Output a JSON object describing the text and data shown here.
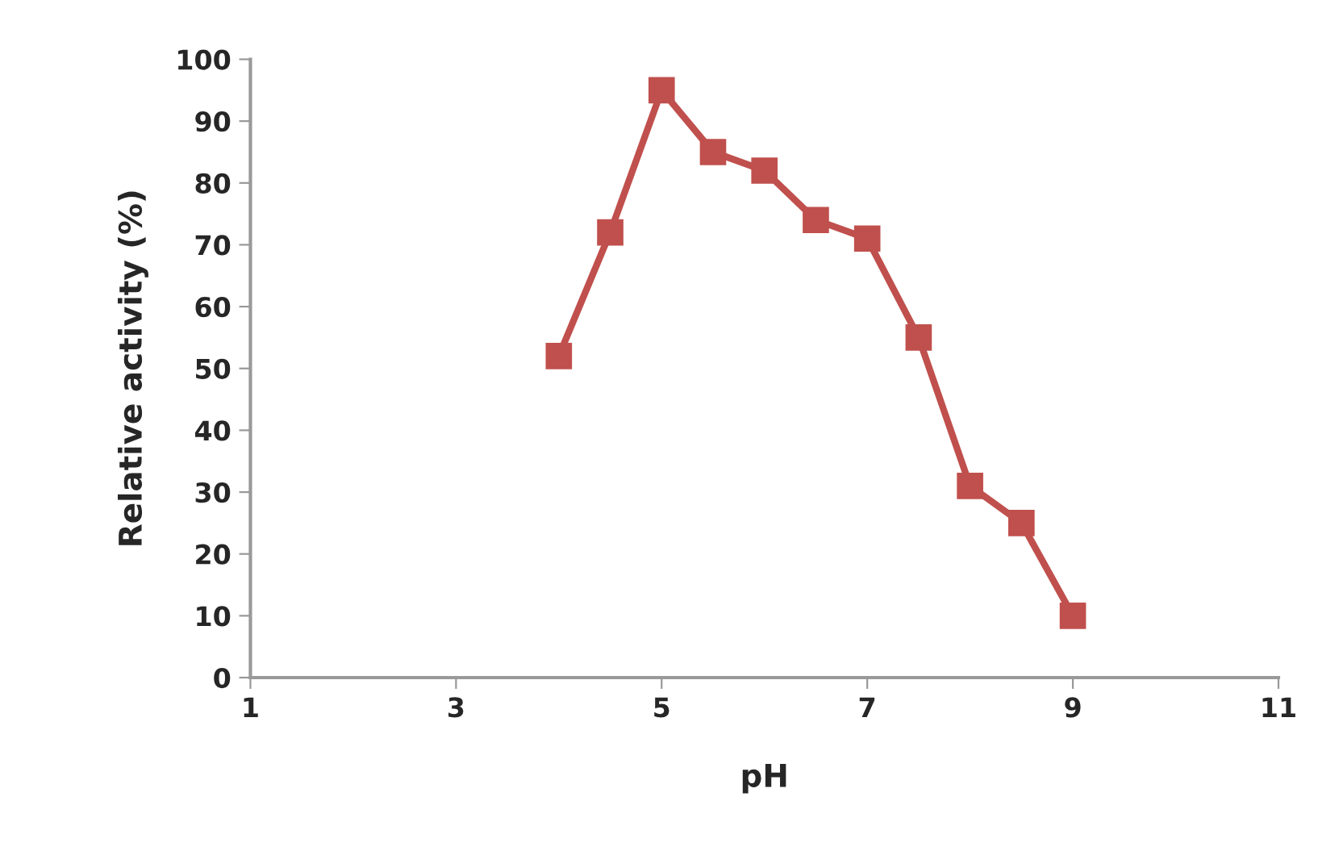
{
  "chart_data": {
    "type": "line",
    "xlabel": "pH",
    "ylabel": "Relative activity (%)",
    "x": [
      4,
      4.5,
      5,
      5.5,
      6,
      6.5,
      7,
      7.5,
      8,
      8.5,
      9
    ],
    "series": [
      {
        "color": "#c0504d",
        "values": [
          52,
          72,
          95,
          85,
          82,
          74,
          71,
          55,
          31,
          25,
          10
        ]
      }
    ],
    "xlim": [
      1,
      11
    ],
    "xticks": [
      1,
      3,
      5,
      7,
      9,
      11
    ],
    "ylim": [
      0,
      100
    ],
    "yticks": [
      0,
      10,
      20,
      30,
      40,
      50,
      60,
      70,
      80,
      90,
      100
    ],
    "grid": false,
    "marker": "square",
    "line_style": "solid"
  }
}
